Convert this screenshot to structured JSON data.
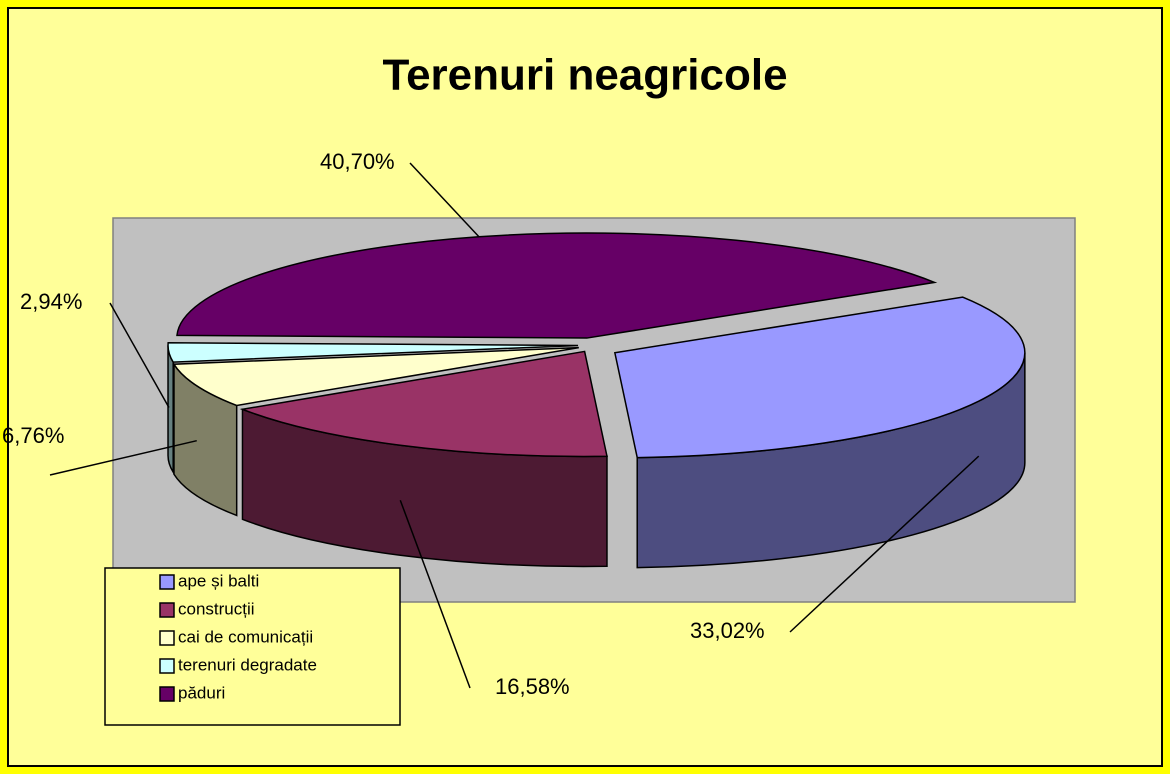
{
  "chart_data": {
    "type": "pie",
    "title": "Terenuri neagricole",
    "categories": [
      "ape și balti",
      "construcții",
      "cai de comunicații",
      "terenuri degradate",
      "păduri"
    ],
    "values": [
      33.02,
      16.58,
      6.76,
      2.94,
      40.7
    ],
    "value_labels": [
      "33,02%",
      "16,58%",
      "6,76%",
      "2,94%",
      "40,70%"
    ],
    "colors": [
      "#9999ff",
      "#993366",
      "#ffffcc",
      "#ccffff",
      "#660066"
    ],
    "legend": "bottom-left"
  }
}
